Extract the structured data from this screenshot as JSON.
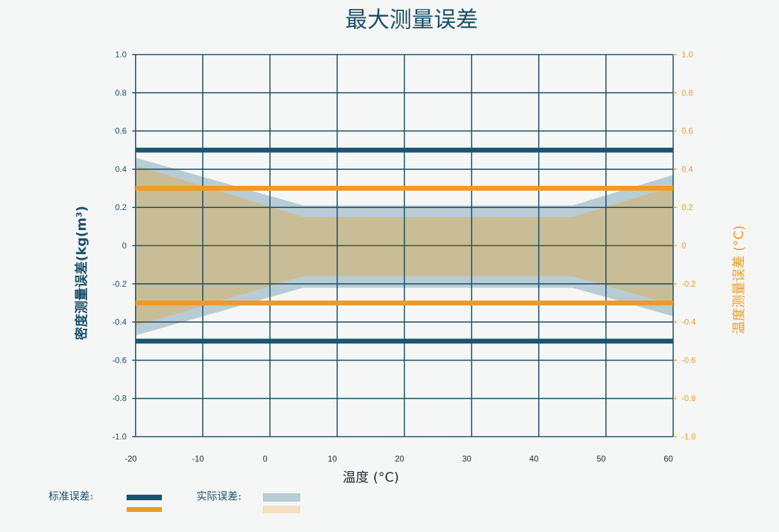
{
  "chart_data": {
    "type": "area",
    "title": "最大测量误差",
    "xlabel": "温度 (°C)",
    "ylabel_left": "密度测量误差(kg(m³)",
    "ylabel_right": "温度测量误差 (°C)",
    "xlim": [
      -20,
      60
    ],
    "ylim": [
      -1.0,
      1.0
    ],
    "x_ticks": [
      -20,
      -10,
      0,
      10,
      20,
      30,
      40,
      50,
      60
    ],
    "y_ticks_left": [
      "1.0",
      "0.8",
      "0.6",
      "0.4",
      "0.2",
      "0",
      "-0.2",
      "-0.4",
      "-0.6",
      "-0.8",
      "-1.0"
    ],
    "y_ticks_right": [
      "1.0",
      "0.8",
      "0.6",
      "0.4",
      "0.2",
      "0",
      "-0.2",
      "-0.4",
      "-0.6",
      "-0.8",
      "-1.0"
    ],
    "grid": true,
    "series": [
      {
        "kind": "actual_band",
        "color": "#b8ccd5",
        "x": [
          -20,
          5,
          45,
          60
        ],
        "upper": [
          0.46,
          0.21,
          0.21,
          0.37
        ],
        "lower": [
          -0.47,
          -0.22,
          -0.22,
          -0.37
        ]
      },
      {
        "kind": "actual_band",
        "color": "#c9bd97",
        "x": [
          -20,
          5,
          45,
          60
        ],
        "upper": [
          0.42,
          0.15,
          0.15,
          0.31
        ],
        "lower": [
          -0.42,
          -0.16,
          -0.16,
          -0.31
        ]
      },
      {
        "kind": "standard_limit",
        "color": "#1b5470",
        "values": [
          0.5,
          -0.5
        ]
      },
      {
        "kind": "standard_limit",
        "color": "#ef9a26",
        "values": [
          0.3,
          -0.3
        ]
      }
    ]
  },
  "legend": {
    "standard_label": "标准误差:",
    "actual_label": "实际误差:",
    "colors": {
      "standard_density": "#1b5470",
      "standard_temperature": "#ef9a26",
      "actual_density": "#b8ccd5",
      "actual_temperature": "#f5dfbe"
    }
  }
}
